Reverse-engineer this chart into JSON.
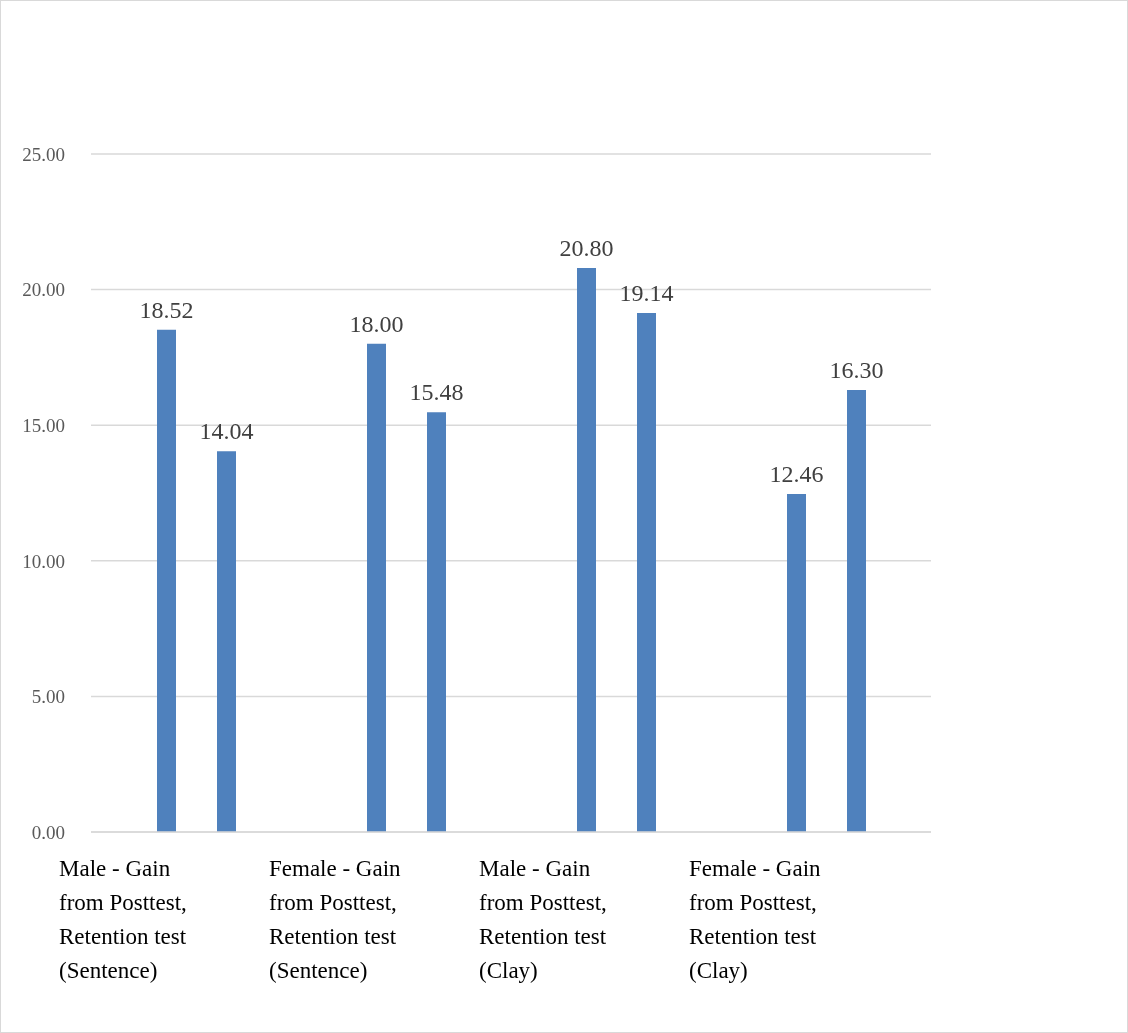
{
  "chart_data": {
    "type": "bar",
    "categories": [
      "Male - Gain from Posttest, Retention test (Sentence)",
      "Female - Gain from Posttest, Retention test (Sentence)",
      "Male - Gain from Posttest, Retention test (Clay)",
      "Female - Gain from Posttest, Retention test (Clay)"
    ],
    "series": [
      {
        "color": "#4f81bd",
        "values": [
          18.52,
          18.0,
          20.8,
          12.46
        ],
        "value_labels": [
          "18.52",
          "18.00",
          "20.80",
          "12.46"
        ]
      },
      {
        "color": "#4f81bd",
        "values": [
          14.04,
          15.48,
          19.14,
          16.3
        ],
        "value_labels": [
          "14.04",
          "15.48",
          "19.14",
          "16.30"
        ]
      }
    ],
    "ylim": [
      0,
      25
    ],
    "yticks": [
      {
        "value": 0,
        "label": "0.00"
      },
      {
        "value": 5,
        "label": "5.00"
      },
      {
        "value": 10,
        "label": "10.00"
      },
      {
        "value": 15,
        "label": "15.00"
      },
      {
        "value": 20,
        "label": "20.00"
      },
      {
        "value": 25,
        "label": "25.00"
      }
    ],
    "grid": "y"
  }
}
